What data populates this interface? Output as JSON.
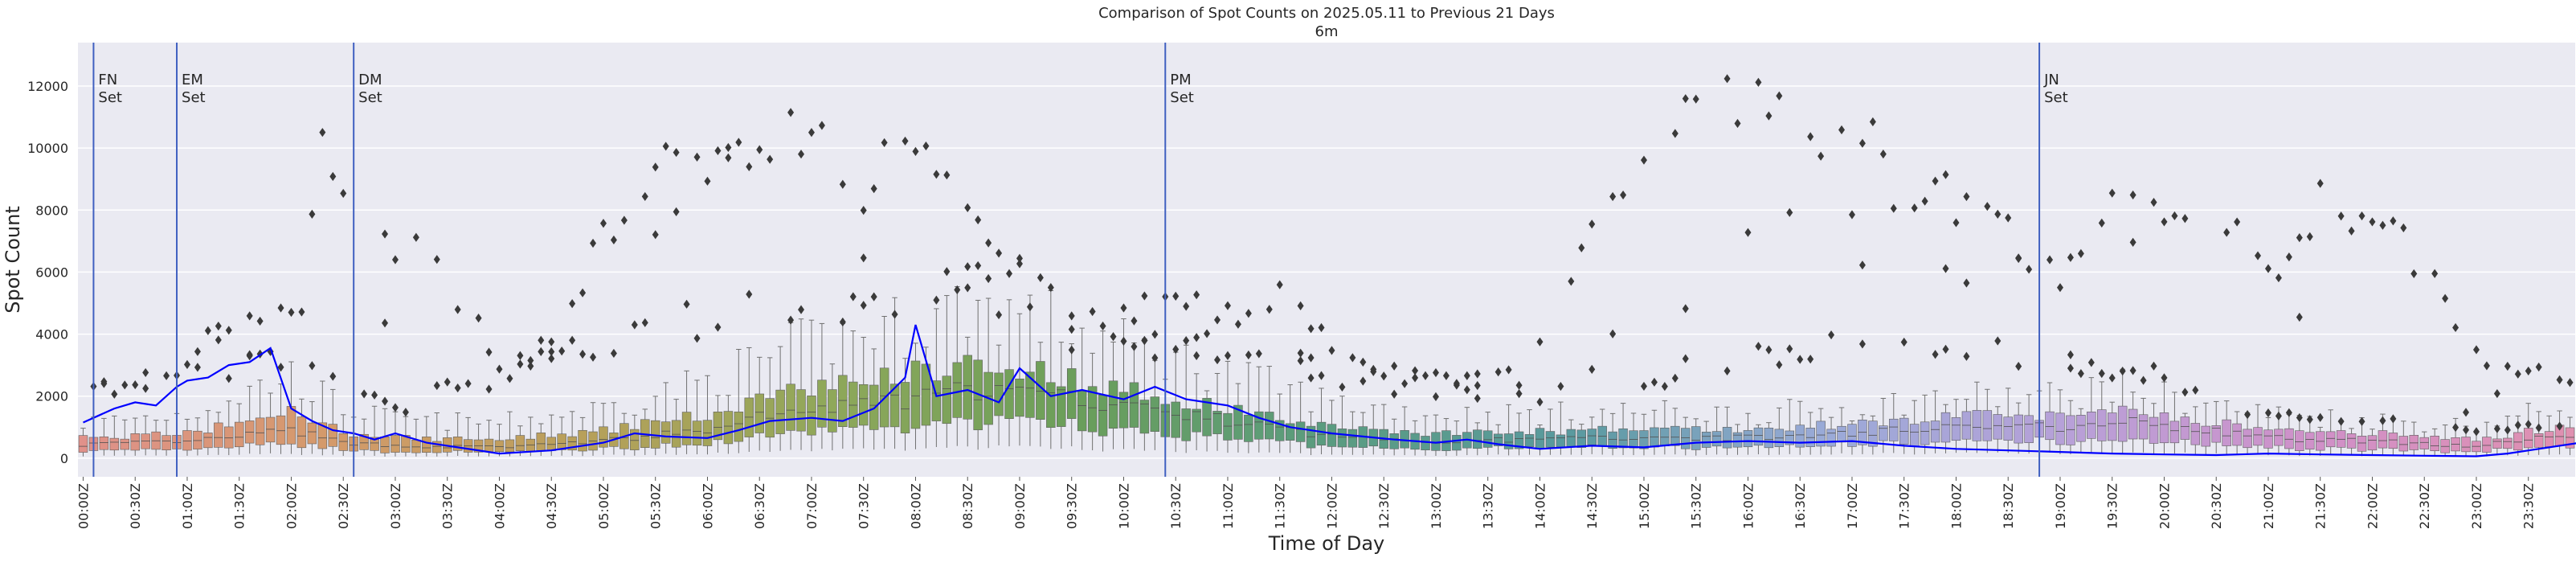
{
  "chart_data": {
    "type": "box",
    "title": "Comparison of Spot Counts on 2025.05.11 to Previous 21 Days",
    "subtitle": "6m",
    "xlabel": "Time of Day",
    "ylabel": "Spot Count",
    "ylim": [
      -600,
      13400
    ],
    "yticks": [
      0,
      2000,
      4000,
      6000,
      8000,
      10000,
      12000
    ],
    "x_tick_labels": [
      "00:00Z",
      "00:30Z",
      "01:00Z",
      "01:30Z",
      "02:00Z",
      "02:30Z",
      "03:00Z",
      "03:30Z",
      "04:00Z",
      "04:30Z",
      "05:00Z",
      "05:30Z",
      "06:00Z",
      "06:30Z",
      "07:00Z",
      "07:30Z",
      "08:00Z",
      "08:30Z",
      "09:00Z",
      "09:30Z",
      "10:00Z",
      "10:30Z",
      "11:00Z",
      "11:30Z",
      "12:00Z",
      "12:30Z",
      "13:00Z",
      "13:30Z",
      "14:00Z",
      "14:30Z",
      "15:00Z",
      "15:30Z",
      "16:00Z",
      "16:30Z",
      "17:00Z",
      "17:30Z",
      "18:00Z",
      "18:30Z",
      "19:00Z",
      "19:30Z",
      "20:00Z",
      "20:30Z",
      "21:00Z",
      "21:30Z",
      "22:00Z",
      "22:30Z",
      "23:00Z",
      "23:30Z"
    ],
    "interval_minutes": 6,
    "grid": true,
    "legend": "none",
    "background_color": "#eaeaf2",
    "line_color": "#0000ff",
    "session_line_color": "#4060c0",
    "box_colors": [
      "#e0918a",
      "#d49a6a",
      "#b8a05a",
      "#8fa85a",
      "#6a9e5a",
      "#5a9c80",
      "#5a9aa0",
      "#9aaad8",
      "#b8a0d8",
      "#d090c8",
      "#e090b0"
    ],
    "sessions": [
      {
        "line1": "FN",
        "line2": "Set",
        "time_hours": 0.1
      },
      {
        "line1": "EM",
        "line2": "Set",
        "time_hours": 0.9
      },
      {
        "line1": "DM",
        "line2": "Set",
        "time_hours": 2.6
      },
      {
        "line1": "PM",
        "line2": "Set",
        "time_hours": 10.4
      },
      {
        "line1": "JN",
        "line2": "Set",
        "time_hours": 18.8
      }
    ],
    "median_anchors": [
      [
        0,
        450
      ],
      [
        1,
        520
      ],
      [
        2,
        900
      ],
      [
        2.5,
        500
      ],
      [
        3,
        400
      ],
      [
        4,
        350
      ],
      [
        5,
        550
      ],
      [
        6,
        900
      ],
      [
        6.5,
        1300
      ],
      [
        7,
        1550
      ],
      [
        8,
        1900
      ],
      [
        8.5,
        2200
      ],
      [
        9,
        2100
      ],
      [
        9.5,
        1900
      ],
      [
        10,
        1700
      ],
      [
        11,
        1200
      ],
      [
        12,
        700
      ],
      [
        13,
        550
      ],
      [
        14,
        600
      ],
      [
        15,
        700
      ],
      [
        16,
        650
      ],
      [
        17,
        800
      ],
      [
        18,
        1050
      ],
      [
        19,
        1000
      ],
      [
        19.5,
        1250
      ],
      [
        20,
        1050
      ],
      [
        21,
        650
      ],
      [
        22,
        550
      ],
      [
        23,
        400
      ],
      [
        23.5,
        600
      ],
      [
        24,
        800
      ]
    ],
    "q3_anchors": [
      [
        0,
        650
      ],
      [
        1,
        800
      ],
      [
        2,
        1500
      ],
      [
        2.5,
        850
      ],
      [
        3,
        650
      ],
      [
        4,
        600
      ],
      [
        5,
        900
      ],
      [
        6,
        1400
      ],
      [
        6.5,
        1900
      ],
      [
        7,
        2300
      ],
      [
        8,
        2800
      ],
      [
        8.5,
        3100
      ],
      [
        9,
        2900
      ],
      [
        9.5,
        2600
      ],
      [
        10,
        2200
      ],
      [
        11,
        1600
      ],
      [
        12,
        1000
      ],
      [
        13,
        800
      ],
      [
        14,
        850
      ],
      [
        15,
        950
      ],
      [
        16,
        900
      ],
      [
        17,
        1100
      ],
      [
        18,
        1350
      ],
      [
        19,
        1350
      ],
      [
        19.5,
        1650
      ],
      [
        20,
        1400
      ],
      [
        21,
        900
      ],
      [
        22,
        800
      ],
      [
        23,
        600
      ],
      [
        23.5,
        850
      ],
      [
        24,
        1150
      ]
    ],
    "whisker_anchors": [
      [
        0,
        1200
      ],
      [
        1,
        1500
      ],
      [
        2,
        2800
      ],
      [
        2.5,
        1700
      ],
      [
        3,
        1300
      ],
      [
        4,
        1200
      ],
      [
        5,
        1700
      ],
      [
        6,
        2600
      ],
      [
        6.5,
        3300
      ],
      [
        7,
        3900
      ],
      [
        8,
        4600
      ],
      [
        8.5,
        5200
      ],
      [
        9,
        4900
      ],
      [
        9.5,
        4400
      ],
      [
        10,
        3800
      ],
      [
        11,
        2900
      ],
      [
        12,
        1900
      ],
      [
        13,
        1500
      ],
      [
        14,
        1500
      ],
      [
        15,
        1600
      ],
      [
        16,
        1500
      ],
      [
        17,
        1700
      ],
      [
        18,
        2100
      ],
      [
        19,
        2100
      ],
      [
        19.5,
        2500
      ],
      [
        20,
        2100
      ],
      [
        21,
        1500
      ],
      [
        22,
        1300
      ],
      [
        23,
        1100
      ],
      [
        23.5,
        1500
      ],
      [
        24,
        1900
      ]
    ],
    "current_day_series": [
      [
        0.0,
        1150
      ],
      [
        0.3,
        1600
      ],
      [
        0.5,
        1800
      ],
      [
        0.7,
        1700
      ],
      [
        0.9,
        2300
      ],
      [
        1.0,
        2500
      ],
      [
        1.2,
        2600
      ],
      [
        1.4,
        3000
      ],
      [
        1.6,
        3100
      ],
      [
        1.8,
        3550
      ],
      [
        2.0,
        1600
      ],
      [
        2.2,
        1200
      ],
      [
        2.4,
        900
      ],
      [
        2.6,
        800
      ],
      [
        2.8,
        600
      ],
      [
        3.0,
        800
      ],
      [
        3.3,
        500
      ],
      [
        3.6,
        350
      ],
      [
        4.0,
        150
      ],
      [
        4.5,
        250
      ],
      [
        5.0,
        500
      ],
      [
        5.3,
        800
      ],
      [
        5.6,
        700
      ],
      [
        6.0,
        650
      ],
      [
        6.3,
        900
      ],
      [
        6.6,
        1200
      ],
      [
        7.0,
        1300
      ],
      [
        7.3,
        1200
      ],
      [
        7.6,
        1600
      ],
      [
        7.9,
        2600
      ],
      [
        8.0,
        4300
      ],
      [
        8.2,
        2000
      ],
      [
        8.5,
        2200
      ],
      [
        8.8,
        1800
      ],
      [
        9.0,
        2900
      ],
      [
        9.3,
        2000
      ],
      [
        9.6,
        2200
      ],
      [
        10.0,
        1900
      ],
      [
        10.3,
        2300
      ],
      [
        10.6,
        1900
      ],
      [
        11.0,
        1700
      ],
      [
        11.3,
        1300
      ],
      [
        11.6,
        1000
      ],
      [
        12.0,
        800
      ],
      [
        12.3,
        700
      ],
      [
        12.6,
        600
      ],
      [
        13.0,
        500
      ],
      [
        13.3,
        600
      ],
      [
        13.6,
        450
      ],
      [
        14.0,
        300
      ],
      [
        14.5,
        400
      ],
      [
        15.0,
        350
      ],
      [
        15.5,
        500
      ],
      [
        16.0,
        550
      ],
      [
        16.5,
        500
      ],
      [
        17.0,
        550
      ],
      [
        17.5,
        400
      ],
      [
        18.0,
        300
      ],
      [
        18.5,
        250
      ],
      [
        19.0,
        200
      ],
      [
        19.5,
        150
      ],
      [
        20.0,
        120
      ],
      [
        20.5,
        100
      ],
      [
        21.0,
        150
      ],
      [
        21.5,
        120
      ],
      [
        22.0,
        100
      ],
      [
        22.5,
        80
      ],
      [
        23.0,
        60
      ],
      [
        23.3,
        150
      ],
      [
        23.6,
        300
      ],
      [
        24.0,
        500
      ]
    ],
    "outlier_band_anchors": [
      [
        0,
        2600
      ],
      [
        0.5,
        2300
      ],
      [
        1,
        3300
      ],
      [
        1.5,
        4800
      ],
      [
        2,
        4600
      ],
      [
        2.3,
        9800
      ],
      [
        2.5,
        8400
      ],
      [
        3,
        7200
      ],
      [
        3.5,
        6000
      ],
      [
        4,
        3000
      ],
      [
        4.5,
        3800
      ],
      [
        5,
        7100
      ],
      [
        5.5,
        9400
      ],
      [
        6,
        9800
      ],
      [
        6.5,
        10800
      ],
      [
        7,
        10400
      ],
      [
        7.5,
        9000
      ],
      [
        8,
        10200
      ],
      [
        8.5,
        7600
      ],
      [
        9,
        6400
      ],
      [
        9.5,
        4600
      ],
      [
        10,
        4800
      ],
      [
        10.5,
        5600
      ],
      [
        11,
        4700
      ],
      [
        11.5,
        5300
      ],
      [
        12,
        3800
      ],
      [
        12.5,
        3000
      ],
      [
        13,
        2600
      ],
      [
        13.5,
        2800
      ],
      [
        14,
        3500
      ],
      [
        14.5,
        8000
      ],
      [
        15,
        10200
      ],
      [
        15.5,
        11200
      ],
      [
        16,
        11800
      ],
      [
        16.5,
        10400
      ],
      [
        17,
        10800
      ],
      [
        17.5,
        9000
      ],
      [
        18,
        8400
      ],
      [
        18.5,
        7400
      ],
      [
        19,
        6200
      ],
      [
        19.5,
        8200
      ],
      [
        20,
        7600
      ],
      [
        20.5,
        7700
      ],
      [
        21,
        6900
      ],
      [
        21.5,
        8400
      ],
      [
        22,
        7900
      ],
      [
        22.5,
        6300
      ],
      [
        23,
        3400
      ],
      [
        23.5,
        2800
      ],
      [
        24,
        2700
      ]
    ],
    "lower_outlier_anchors": [
      [
        0,
        2200
      ],
      [
        1,
        2600
      ],
      [
        2,
        3100
      ],
      [
        3,
        1600
      ],
      [
        4,
        2700
      ],
      [
        5,
        3600
      ],
      [
        5.5,
        4100
      ],
      [
        6,
        4400
      ],
      [
        6.5,
        4700
      ],
      [
        7,
        4300
      ],
      [
        8,
        5300
      ],
      [
        8.5,
        5800
      ],
      [
        9,
        4600
      ],
      [
        9.5,
        4000
      ],
      [
        10,
        3300
      ],
      [
        10.5,
        3800
      ],
      [
        11,
        3400
      ],
      [
        12,
        2600
      ],
      [
        13,
        2100
      ],
      [
        14,
        2000
      ],
      [
        14.5,
        2600
      ],
      [
        15,
        2100
      ],
      [
        15.5,
        3400
      ],
      [
        16,
        3100
      ],
      [
        16.5,
        3700
      ],
      [
        17,
        3300
      ],
      [
        17.5,
        3300
      ],
      [
        18,
        3500
      ],
      [
        18.5,
        3300
      ],
      [
        19,
        2600
      ],
      [
        19.5,
        3000
      ],
      [
        20,
        2500
      ],
      [
        21,
        1300
      ],
      [
        22,
        1300
      ],
      [
        23,
        1000
      ],
      [
        24,
        1200
      ]
    ]
  }
}
